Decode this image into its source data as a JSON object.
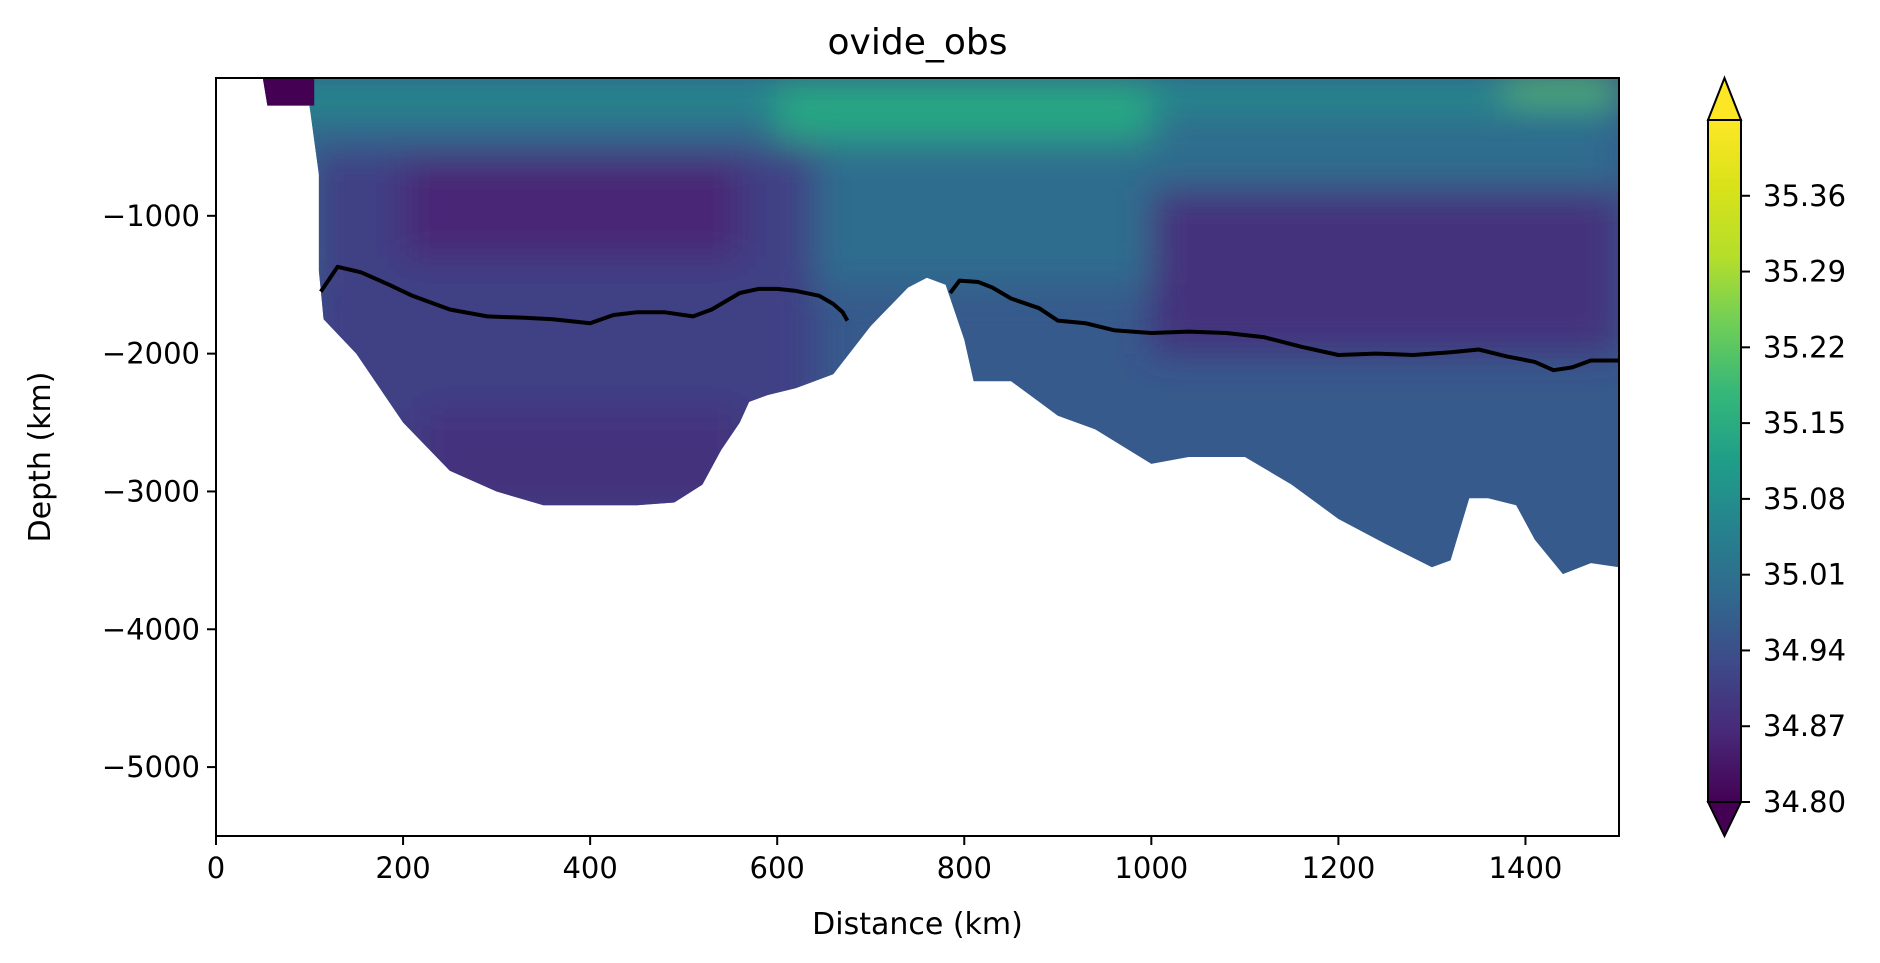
{
  "chart_data": {
    "type": "heatmap",
    "subtype": "section with contour line",
    "title": "ovide_obs",
    "xlabel": "Distance (km)",
    "ylabel": "Depth (km)",
    "xlim": [
      0,
      1500
    ],
    "ylim": [
      -5500,
      0
    ],
    "x_ticks": [
      0,
      200,
      400,
      600,
      800,
      1000,
      1200,
      1400
    ],
    "x_tick_labels": [
      "0",
      "200",
      "400",
      "600",
      "800",
      "1000",
      "1200",
      "1400"
    ],
    "y_ticks": [
      -1000,
      -2000,
      -3000,
      -4000,
      -5000
    ],
    "y_tick_labels": [
      "−1000",
      "−2000",
      "−3000",
      "−4000",
      "−5000"
    ],
    "colormap": "viridis",
    "colorbar": {
      "range": [
        34.8,
        35.43
      ],
      "extend": "both",
      "ticks": [
        34.8,
        34.87,
        34.94,
        35.01,
        35.08,
        35.15,
        35.22,
        35.29,
        35.36
      ],
      "tick_labels": [
        "34.80",
        "34.87",
        "34.94",
        "35.01",
        "35.08",
        "35.15",
        "35.22",
        "35.29",
        "35.36"
      ]
    },
    "fields": {
      "surface_value": 35.08,
      "upper_value": 35.0,
      "deep_west_value": 34.91,
      "deep_east_value": 34.96,
      "core_minimum": 34.86,
      "nw_corner_value": 34.8,
      "surface_max": 35.22
    },
    "data_coast_x": [
      50,
      55,
      100,
      110,
      110,
      115,
      150,
      200,
      250,
      300,
      350,
      380,
      450,
      490,
      520,
      540,
      560,
      570,
      590,
      620,
      660,
      700,
      740,
      760,
      780,
      800,
      810,
      850,
      880,
      900,
      940,
      1000,
      1040,
      1100,
      1150,
      1200,
      1250,
      1300,
      1320,
      1340,
      1360,
      1390,
      1410,
      1440,
      1470,
      1500
    ],
    "data_coast_y": [
      0,
      -200,
      -200,
      -700,
      -1400,
      -1750,
      -2000,
      -2500,
      -2850,
      -3000,
      -3100,
      -3100,
      -3100,
      -3080,
      -2950,
      -2700,
      -2500,
      -2350,
      -2300,
      -2250,
      -2150,
      -1800,
      -1520,
      -1450,
      -1500,
      -1900,
      -2200,
      -2200,
      -2350,
      -2450,
      -2550,
      -2800,
      -2750,
      -2750,
      -2950,
      -3200,
      -3380,
      -3550,
      -3500,
      -3050,
      -3050,
      -3100,
      -3350,
      -3600,
      -3520,
      -3550
    ],
    "contour_segments": [
      {
        "x": [
          112,
          130,
          155,
          185,
          210,
          250,
          290,
          330,
          360,
          400,
          425,
          450,
          480,
          510,
          530,
          560,
          580,
          600,
          620,
          645,
          660,
          670,
          675
        ],
        "y": [
          -1550,
          -1370,
          -1410,
          -1500,
          -1580,
          -1680,
          -1730,
          -1740,
          -1750,
          -1780,
          -1720,
          -1700,
          -1700,
          -1730,
          -1680,
          -1560,
          -1530,
          -1530,
          -1545,
          -1580,
          -1640,
          -1700,
          -1760
        ]
      },
      {
        "x": [
          785,
          795,
          815,
          830,
          850,
          880,
          900,
          930,
          960,
          1000,
          1040,
          1080,
          1120,
          1160,
          1200,
          1240,
          1280,
          1320,
          1350,
          1380,
          1410,
          1430,
          1450,
          1470,
          1500
        ],
        "y": [
          -1560,
          -1470,
          -1480,
          -1520,
          -1600,
          -1670,
          -1760,
          -1780,
          -1830,
          -1850,
          -1840,
          -1850,
          -1880,
          -1950,
          -2010,
          -2000,
          -2010,
          -1990,
          -1970,
          -2020,
          -2060,
          -2120,
          -2100,
          -2050,
          -2050
        ]
      }
    ]
  }
}
